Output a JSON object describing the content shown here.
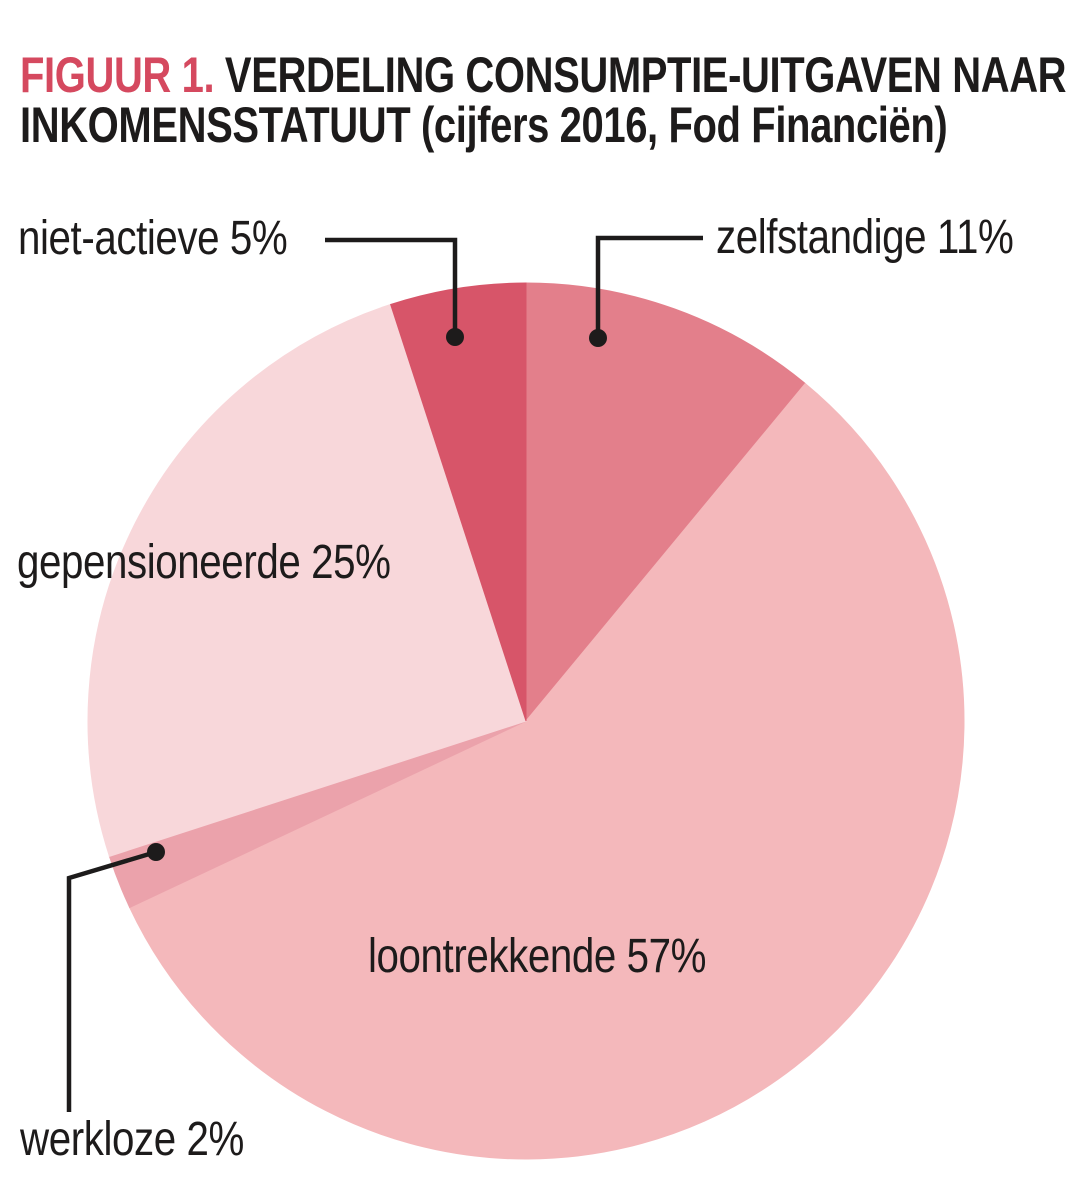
{
  "title": {
    "label": "FIGUUR 1.",
    "line1": "VERDELING CONSUMPTIE-UITGAVEN NAAR",
    "line2": "INKOMENSSTATUUT (cijfers 2016, Fod Financiën)",
    "label_color": "#d5495f"
  },
  "chart_data": {
    "type": "pie",
    "title": "FIGUUR 1. VERDELING CONSUMPTIE-UITGAVEN NAAR INKOMENSSTATUUT (cijfers 2016, Fod Financiën)",
    "source": "cijfers 2016, Fod Financiën",
    "unit": "%",
    "start_angle_deg": -90,
    "direction": "clockwise",
    "slices": [
      {
        "label": "zelfstandige",
        "value": 11,
        "display": "zelfstandige 11%",
        "color": "#e37f8b"
      },
      {
        "label": "loontrekkende",
        "value": 57,
        "display": "loontrekkende 57%",
        "color": "#f4b8bb"
      },
      {
        "label": "werkloze",
        "value": 2,
        "display": "werkloze 2%",
        "color": "#eba2ab"
      },
      {
        "label": "gepensioneerde",
        "value": 25,
        "display": "gepensioneerde 25%",
        "color": "#f8d7da"
      },
      {
        "label": "niet-actieve",
        "value": 5,
        "display": "niet-actieve 5%",
        "color": "#d75569"
      }
    ],
    "legend": "none",
    "annotation_color": "#1d1b1b"
  }
}
